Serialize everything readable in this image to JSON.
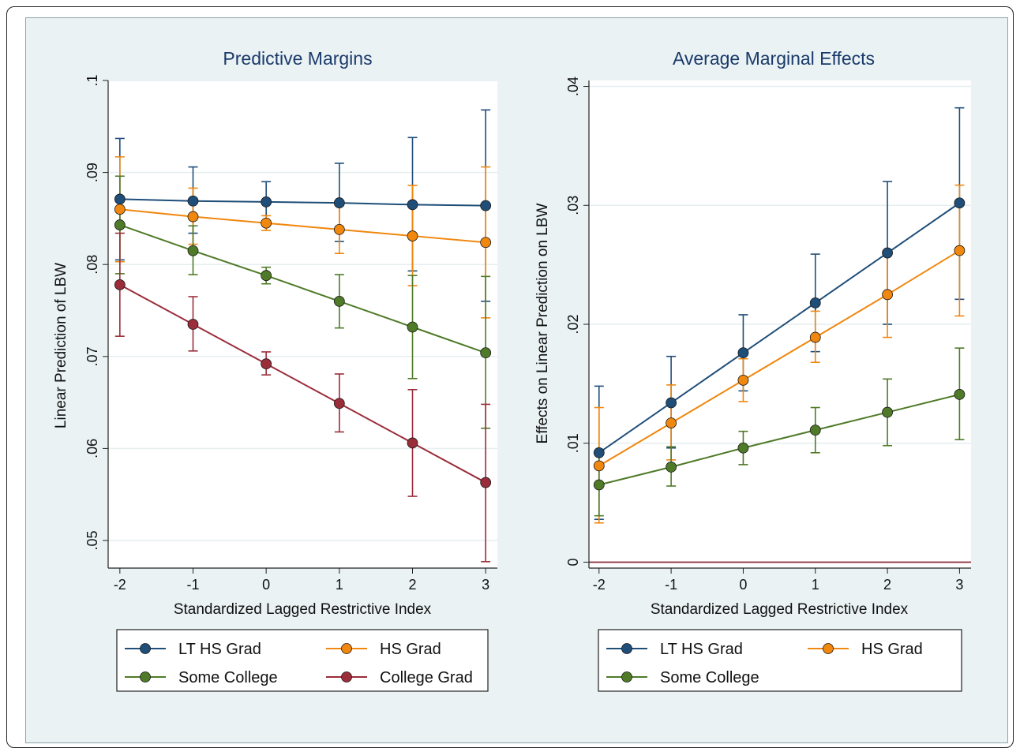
{
  "colors": {
    "LT HS Grad": "#1f4e79",
    "HS Grad": "#f0870e",
    "Some College": "#4f7a28",
    "College Grad": "#9b2d3a",
    "zero_line": "#8b2d3a"
  },
  "chart_data": [
    {
      "type": "line",
      "title": "Predictive Margins",
      "xlabel": "Standardized Lagged Restrictive Index",
      "ylabel": "Linear Prediction of LBW",
      "x": [
        -2,
        -1,
        0,
        1,
        2,
        3
      ],
      "xticks": [
        "-2",
        "-1",
        "0",
        "1",
        "2",
        "3"
      ],
      "ylim": [
        0.047,
        0.1
      ],
      "yticks": [
        {
          "v": 0.05,
          "label": ".05"
        },
        {
          "v": 0.06,
          "label": ".06"
        },
        {
          "v": 0.07,
          "label": ".07"
        },
        {
          "v": 0.08,
          "label": ".08"
        },
        {
          "v": 0.09,
          "label": ".09"
        },
        {
          "v": 0.1,
          "label": ".1"
        }
      ],
      "grid": true,
      "legend": "bottom",
      "series": [
        {
          "name": "LT HS Grad",
          "values": [
            0.0871,
            0.0869,
            0.0868,
            0.0867,
            0.0865,
            0.0864
          ],
          "lo": [
            0.0805,
            0.0834,
            0.0847,
            0.0825,
            0.0793,
            0.076
          ],
          "hi": [
            0.0937,
            0.0906,
            0.089,
            0.091,
            0.0938,
            0.0968
          ]
        },
        {
          "name": "HS Grad",
          "values": [
            0.086,
            0.0852,
            0.0845,
            0.0838,
            0.0831,
            0.0824
          ],
          "lo": [
            0.0803,
            0.0822,
            0.0837,
            0.0812,
            0.0777,
            0.0742
          ],
          "hi": [
            0.0917,
            0.0883,
            0.0853,
            0.0864,
            0.0886,
            0.0906
          ]
        },
        {
          "name": "Some College",
          "values": [
            0.0843,
            0.0815,
            0.0788,
            0.076,
            0.0732,
            0.0704
          ],
          "lo": [
            0.079,
            0.0789,
            0.0779,
            0.0731,
            0.0676,
            0.0622
          ],
          "hi": [
            0.0896,
            0.0842,
            0.0797,
            0.0789,
            0.0788,
            0.0787
          ]
        },
        {
          "name": "College Grad",
          "values": [
            0.0778,
            0.0735,
            0.0692,
            0.0649,
            0.0606,
            0.0563
          ],
          "lo": [
            0.0722,
            0.0706,
            0.068,
            0.0618,
            0.0548,
            0.0477
          ],
          "hi": [
            0.0834,
            0.0765,
            0.0705,
            0.0681,
            0.0664,
            0.0648
          ]
        }
      ]
    },
    {
      "type": "line",
      "title": "Average Marginal Effects",
      "xlabel": "Standardized Lagged Restrictive Index",
      "ylabel": "Effects on Linear Prediction on LBW",
      "x": [
        -2,
        -1,
        0,
        1,
        2,
        3
      ],
      "xticks": [
        "-2",
        "-1",
        "0",
        "1",
        "2",
        "3"
      ],
      "ylim": [
        -0.0005,
        0.0405
      ],
      "yticks": [
        {
          "v": 0,
          "label": "0"
        },
        {
          "v": 0.01,
          "label": ".01"
        },
        {
          "v": 0.02,
          "label": ".02"
        },
        {
          "v": 0.03,
          "label": ".03"
        },
        {
          "v": 0.04,
          "label": ".04"
        }
      ],
      "grid": true,
      "legend": "bottom",
      "reference_line": 0,
      "series": [
        {
          "name": "LT HS Grad",
          "values": [
            0.0092,
            0.0134,
            0.0176,
            0.0218,
            0.026,
            0.0302
          ],
          "lo": [
            0.0036,
            0.0096,
            0.0144,
            0.0177,
            0.02,
            0.0221
          ],
          "hi": [
            0.0148,
            0.0173,
            0.0208,
            0.0259,
            0.032,
            0.0382
          ]
        },
        {
          "name": "HS Grad",
          "values": [
            0.0081,
            0.0117,
            0.0153,
            0.0189,
            0.0225,
            0.0262
          ],
          "lo": [
            0.0033,
            0.0086,
            0.0135,
            0.0168,
            0.0189,
            0.0207
          ],
          "hi": [
            0.013,
            0.0149,
            0.0171,
            0.0211,
            0.0262,
            0.0317
          ]
        },
        {
          "name": "Some College",
          "values": [
            0.0065,
            0.008,
            0.0096,
            0.0111,
            0.0126,
            0.0141
          ],
          "lo": [
            0.0039,
            0.0064,
            0.0082,
            0.0092,
            0.0098,
            0.0103
          ],
          "hi": [
            0.0091,
            0.0097,
            0.011,
            0.013,
            0.0154,
            0.018
          ]
        }
      ]
    }
  ],
  "legends": [
    {
      "entries": [
        "LT HS Grad",
        "HS Grad",
        "Some College",
        "College Grad"
      ]
    },
    {
      "entries": [
        "LT HS Grad",
        "HS Grad",
        "Some College"
      ]
    }
  ]
}
